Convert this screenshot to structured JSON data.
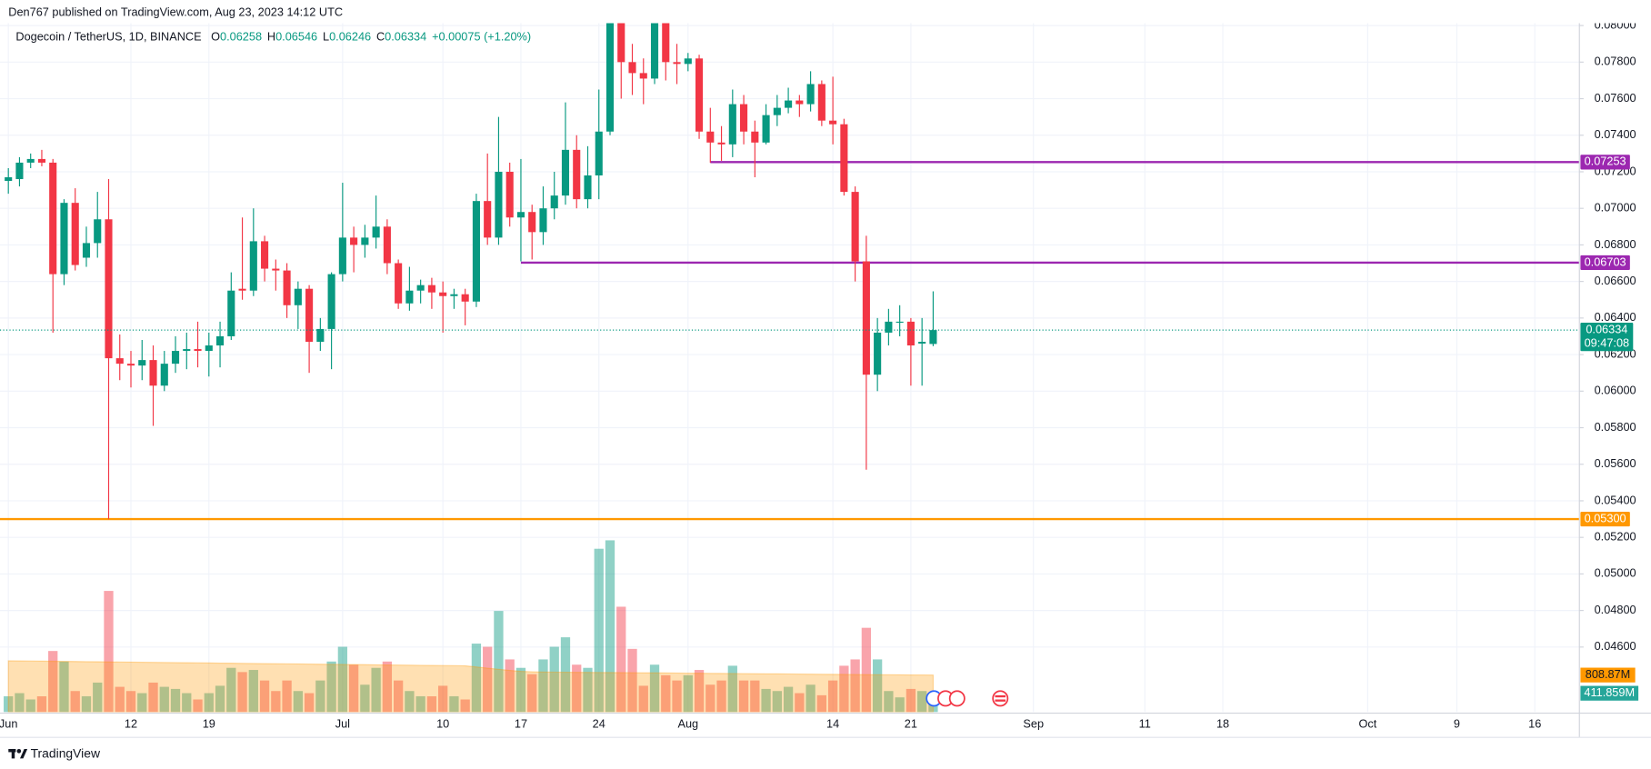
{
  "header": {
    "publisher": "Den767 published on TradingView.com, Aug 23, 2023 14:12 UTC",
    "logo": "TradingView"
  },
  "chart_data": {
    "type": "candlestick",
    "title": "Dogecoin / TetherUS, 1D, BINANCE",
    "ohlc_letters": [
      "O",
      "H",
      "L",
      "C"
    ],
    "change_label": "+0.00075 (+1.20%)",
    "countdown": "09:47:08",
    "up_color": "#089981",
    "down_color": "#f23645",
    "x": [
      "2023-06-01",
      "2023-06-02",
      "2023-06-03",
      "2023-06-04",
      "2023-06-05",
      "2023-06-06",
      "2023-06-07",
      "2023-06-08",
      "2023-06-09",
      "2023-06-10",
      "2023-06-11",
      "2023-06-12",
      "2023-06-13",
      "2023-06-14",
      "2023-06-15",
      "2023-06-16",
      "2023-06-17",
      "2023-06-18",
      "2023-06-19",
      "2023-06-20",
      "2023-06-21",
      "2023-06-22",
      "2023-06-23",
      "2023-06-24",
      "2023-06-25",
      "2023-06-26",
      "2023-06-27",
      "2023-06-28",
      "2023-06-29",
      "2023-06-30",
      "2023-07-01",
      "2023-07-02",
      "2023-07-03",
      "2023-07-04",
      "2023-07-05",
      "2023-07-06",
      "2023-07-07",
      "2023-07-08",
      "2023-07-09",
      "2023-07-10",
      "2023-07-11",
      "2023-07-12",
      "2023-07-13",
      "2023-07-14",
      "2023-07-15",
      "2023-07-16",
      "2023-07-17",
      "2023-07-18",
      "2023-07-19",
      "2023-07-20",
      "2023-07-21",
      "2023-07-22",
      "2023-07-23",
      "2023-07-24",
      "2023-07-25",
      "2023-07-26",
      "2023-07-27",
      "2023-07-28",
      "2023-07-29",
      "2023-07-30",
      "2023-07-31",
      "2023-08-01",
      "2023-08-02",
      "2023-08-03",
      "2023-08-04",
      "2023-08-05",
      "2023-08-06",
      "2023-08-07",
      "2023-08-08",
      "2023-08-09",
      "2023-08-10",
      "2023-08-11",
      "2023-08-12",
      "2023-08-13",
      "2023-08-14",
      "2023-08-15",
      "2023-08-16",
      "2023-08-17",
      "2023-08-18",
      "2023-08-19",
      "2023-08-20",
      "2023-08-21",
      "2023-08-22",
      "2023-08-23"
    ],
    "open": [
      0.0715,
      0.0716,
      0.0725,
      0.0727,
      0.0725,
      0.0664,
      0.0703,
      0.0673,
      0.0681,
      0.0694,
      0.0618,
      0.0615,
      0.0614,
      0.0617,
      0.0603,
      0.0615,
      0.0622,
      0.0623,
      0.0622,
      0.0625,
      0.063,
      0.0656,
      0.0655,
      0.0682,
      0.0667,
      0.0666,
      0.0647,
      0.0656,
      0.0627,
      0.0634,
      0.0664,
      0.0684,
      0.068,
      0.0684,
      0.069,
      0.067,
      0.0648,
      0.0655,
      0.0658,
      0.0654,
      0.0652,
      0.0653,
      0.0649,
      0.0704,
      0.0684,
      0.072,
      0.0695,
      0.0698,
      0.0687,
      0.07,
      0.0707,
      0.0732,
      0.0705,
      0.0718,
      0.0742,
      0.081,
      0.078,
      0.0774,
      0.0771,
      0.0805,
      0.078,
      0.0779,
      0.0782,
      0.0742,
      0.0736,
      0.0735,
      0.0757,
      0.0742,
      0.0736,
      0.0751,
      0.0755,
      0.0759,
      0.0757,
      0.0768,
      0.0748,
      0.0746,
      0.0709,
      0.0671,
      0.0609,
      0.0632,
      0.0638,
      0.0638,
      0.0626,
      0.06258
    ],
    "high": [
      0.0722,
      0.0728,
      0.073,
      0.0732,
      0.0727,
      0.0705,
      0.0711,
      0.069,
      0.0709,
      0.0716,
      0.0631,
      0.0622,
      0.0628,
      0.0625,
      0.0622,
      0.063,
      0.0632,
      0.0638,
      0.0632,
      0.0638,
      0.0665,
      0.0695,
      0.07,
      0.0685,
      0.0672,
      0.067,
      0.066,
      0.0658,
      0.064,
      0.0665,
      0.0714,
      0.069,
      0.0691,
      0.0707,
      0.0694,
      0.0672,
      0.0668,
      0.0661,
      0.0662,
      0.066,
      0.0656,
      0.0656,
      0.0708,
      0.073,
      0.075,
      0.0725,
      0.0727,
      0.0702,
      0.0712,
      0.072,
      0.0758,
      0.074,
      0.0734,
      0.0765,
      0.0825,
      0.083,
      0.079,
      0.0782,
      0.083,
      0.0812,
      0.079,
      0.0785,
      0.0784,
      0.0755,
      0.0745,
      0.0765,
      0.0762,
      0.0748,
      0.0757,
      0.0762,
      0.0766,
      0.0762,
      0.0775,
      0.077,
      0.0772,
      0.0749,
      0.0712,
      0.0685,
      0.064,
      0.0645,
      0.0647,
      0.064,
      0.064,
      0.06546
    ],
    "low": [
      0.0708,
      0.0712,
      0.0722,
      0.0723,
      0.0632,
      0.0658,
      0.0666,
      0.0668,
      0.0673,
      0.053,
      0.0606,
      0.0602,
      0.0606,
      0.0581,
      0.06,
      0.061,
      0.0612,
      0.0613,
      0.0608,
      0.0613,
      0.0628,
      0.065,
      0.0652,
      0.066,
      0.0655,
      0.064,
      0.0634,
      0.061,
      0.0622,
      0.0612,
      0.066,
      0.0665,
      0.0673,
      0.0678,
      0.0664,
      0.0645,
      0.0644,
      0.0648,
      0.0645,
      0.0632,
      0.0645,
      0.0636,
      0.0646,
      0.068,
      0.068,
      0.069,
      0.0671,
      0.0672,
      0.068,
      0.0694,
      0.0702,
      0.07,
      0.07,
      0.0705,
      0.074,
      0.076,
      0.0762,
      0.0757,
      0.0768,
      0.077,
      0.0768,
      0.0775,
      0.0738,
      0.0725,
      0.0726,
      0.0728,
      0.0735,
      0.0717,
      0.0735,
      0.0745,
      0.0752,
      0.075,
      0.0753,
      0.0745,
      0.0735,
      0.0707,
      0.066,
      0.0557,
      0.06,
      0.0625,
      0.063,
      0.0603,
      0.0603,
      0.06246
    ],
    "close": [
      0.0717,
      0.0725,
      0.0727,
      0.0725,
      0.0664,
      0.0703,
      0.0669,
      0.0681,
      0.0694,
      0.0618,
      0.0615,
      0.0614,
      0.0617,
      0.0603,
      0.0615,
      0.0622,
      0.0623,
      0.0622,
      0.0625,
      0.063,
      0.0655,
      0.0655,
      0.0682,
      0.0667,
      0.0666,
      0.0647,
      0.0656,
      0.0627,
      0.0634,
      0.0664,
      0.0684,
      0.068,
      0.0684,
      0.069,
      0.067,
      0.0648,
      0.0655,
      0.0658,
      0.0654,
      0.0652,
      0.0653,
      0.0649,
      0.0704,
      0.0684,
      0.072,
      0.0695,
      0.0698,
      0.0687,
      0.07,
      0.0707,
      0.0732,
      0.0705,
      0.0718,
      0.0742,
      0.081,
      0.078,
      0.0774,
      0.0771,
      0.0805,
      0.078,
      0.0779,
      0.0782,
      0.0742,
      0.0736,
      0.0735,
      0.0757,
      0.0742,
      0.0736,
      0.0751,
      0.0755,
      0.0759,
      0.0757,
      0.0768,
      0.0748,
      0.0746,
      0.0709,
      0.0671,
      0.0609,
      0.0632,
      0.0638,
      0.0638,
      0.0625,
      0.0627,
      0.06334
    ],
    "volume": {
      "values": [
        345,
        414,
        276,
        345,
        1334,
        1104,
        460,
        345,
        644,
        2645,
        552,
        460,
        414,
        644,
        552,
        506,
        414,
        276,
        414,
        575,
        966,
        874,
        920,
        690,
        460,
        690,
        460,
        414,
        690,
        1104,
        1426,
        1035,
        598,
        966,
        1104,
        690,
        460,
        345,
        345,
        575,
        345,
        276,
        1495,
        1426,
        2208,
        1150,
        966,
        828,
        1150,
        1426,
        1633,
        1035,
        966,
        3565,
        3749,
        2300,
        1380,
        575,
        1035,
        805,
        690,
        805,
        920,
        598,
        690,
        1012,
        690,
        690,
        506,
        460,
        552,
        414,
        598,
        368,
        690,
        1012,
        1150,
        1840,
        1150,
        460,
        322,
        506,
        460,
        411.859
      ],
      "last_label": "411.859M",
      "label_color": "#26a69a"
    },
    "volume_ma": {
      "values": [
        1120,
        1117,
        1115,
        1112,
        1109,
        1107,
        1104,
        1101,
        1099,
        1096,
        1093,
        1091,
        1088,
        1085,
        1083,
        1080,
        1077,
        1075,
        1072,
        1069,
        1067,
        1064,
        1061,
        1059,
        1056,
        1053,
        1051,
        1048,
        1045,
        1043,
        1040,
        1037,
        1035,
        1032,
        1029,
        1027,
        1024,
        1021,
        1019,
        1016,
        1013,
        1010,
        985,
        960,
        935,
        910,
        890,
        880,
        875,
        872,
        870,
        868,
        866,
        865,
        864,
        862,
        860,
        858,
        856,
        854,
        852,
        850,
        848,
        846,
        844,
        842,
        840,
        838,
        836,
        834,
        832,
        830,
        828,
        826,
        824,
        822,
        820,
        818,
        816,
        815,
        813,
        811,
        810,
        808.87
      ],
      "last_label": "808.87M",
      "color": "#ff9800"
    },
    "vlim": [
      0,
      4000
    ],
    "xlim": [
      "2023-05-31T06:00:00Z",
      "2023-10-20T00:00:00Z"
    ],
    "xticks": [
      {
        "value": "2023-06-01",
        "label": "Jun"
      },
      {
        "value": "2023-06-12",
        "label": "12"
      },
      {
        "value": "2023-06-19",
        "label": "19"
      },
      {
        "value": "2023-07-01",
        "label": "Jul"
      },
      {
        "value": "2023-07-10",
        "label": "10"
      },
      {
        "value": "2023-07-17",
        "label": "17"
      },
      {
        "value": "2023-07-24",
        "label": "24"
      },
      {
        "value": "2023-08-01",
        "label": "Aug"
      },
      {
        "value": "2023-08-14",
        "label": "14"
      },
      {
        "value": "2023-08-21",
        "label": "21"
      },
      {
        "value": "2023-09-01",
        "label": "Sep"
      },
      {
        "value": "2023-09-11",
        "label": "11"
      },
      {
        "value": "2023-09-18",
        "label": "18"
      },
      {
        "value": "2023-10-01",
        "label": "Oct"
      },
      {
        "value": "2023-10-09",
        "label": "9"
      },
      {
        "value": "2023-10-16",
        "label": "16"
      }
    ],
    "ylim": [
      0.04244,
      0.08013
    ],
    "yticks": [
      {
        "value": 0.046,
        "label": "0.04600"
      },
      {
        "value": 0.048,
        "label": "0.04800"
      },
      {
        "value": 0.05,
        "label": "0.05000"
      },
      {
        "value": 0.052,
        "label": "0.05200"
      },
      {
        "value": 0.054,
        "label": "0.05400"
      },
      {
        "value": 0.056,
        "label": "0.05600"
      },
      {
        "value": 0.058,
        "label": "0.05800"
      },
      {
        "value": 0.06,
        "label": "0.06000"
      },
      {
        "value": 0.062,
        "label": "0.06200"
      },
      {
        "value": 0.064,
        "label": "0.06400"
      },
      {
        "value": 0.066,
        "label": "0.06600"
      },
      {
        "value": 0.068,
        "label": "0.06800"
      },
      {
        "value": 0.07,
        "label": "0.07000"
      },
      {
        "value": 0.072,
        "label": "0.07200"
      },
      {
        "value": 0.074,
        "label": "0.07400"
      },
      {
        "value": 0.076,
        "label": "0.07600"
      },
      {
        "value": 0.078,
        "label": "0.07800"
      },
      {
        "value": 0.08,
        "label": "0.08000"
      }
    ],
    "grid": true,
    "hlines": [
      {
        "value": 0.07253,
        "color": "#9c27b0",
        "from": "2023-08-03"
      },
      {
        "value": 0.06703,
        "color": "#9c27b0",
        "from": "2023-07-17"
      },
      {
        "value": 0.053,
        "label": "0.05300",
        "color": "#ff9800"
      }
    ]
  }
}
